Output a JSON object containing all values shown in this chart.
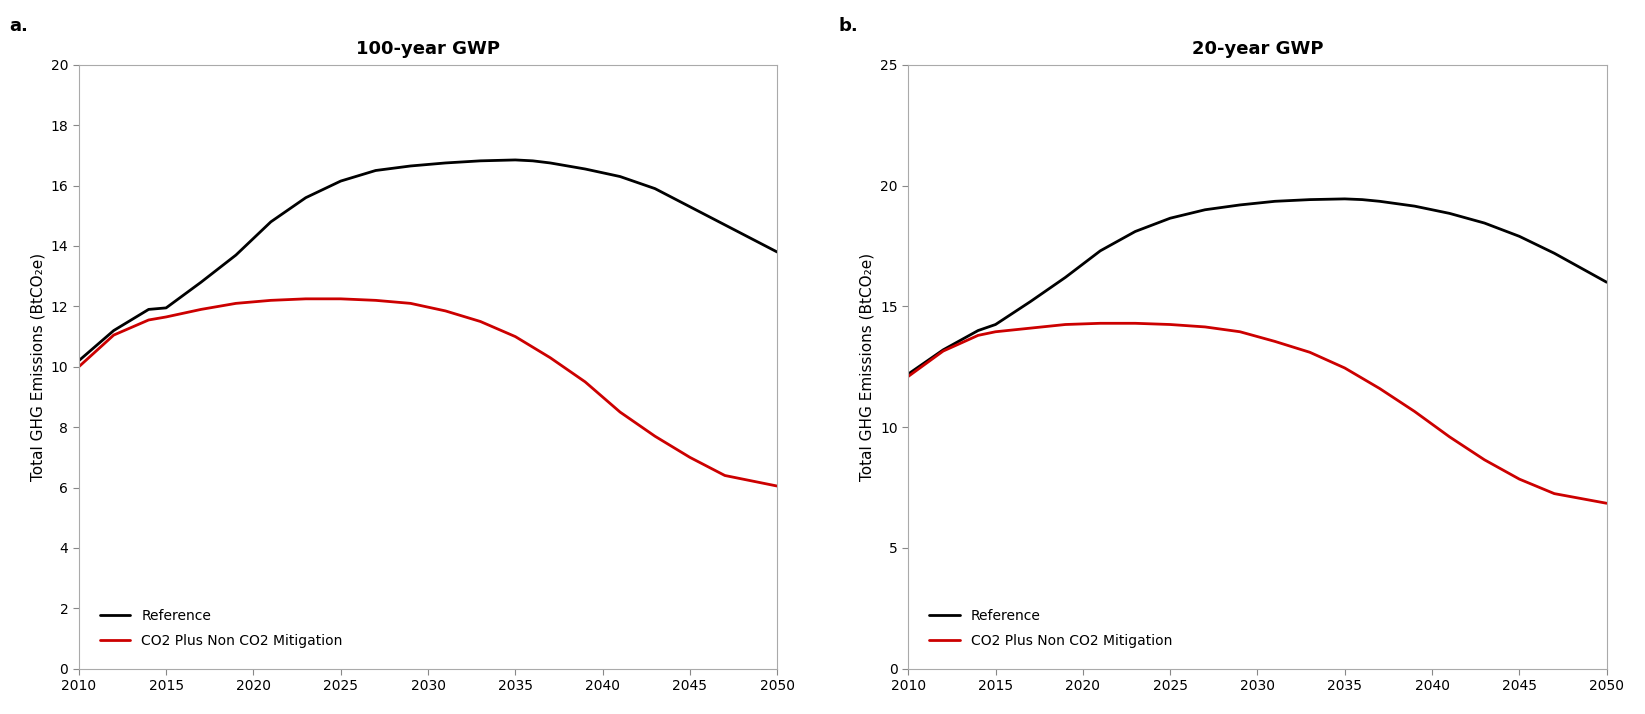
{
  "panel_a": {
    "title": "100-year GWP",
    "label": "a.",
    "ylabel": "Total GHG Emissions (BtCO₂e)",
    "ylim": [
      0,
      20
    ],
    "yticks": [
      0,
      2,
      4,
      6,
      8,
      10,
      12,
      14,
      16,
      18,
      20
    ],
    "xlim": [
      2010,
      2050
    ],
    "xticks": [
      2010,
      2015,
      2020,
      2025,
      2030,
      2035,
      2040,
      2045,
      2050
    ],
    "reference_x": [
      2010,
      2012,
      2014,
      2015,
      2017,
      2019,
      2021,
      2023,
      2025,
      2027,
      2029,
      2031,
      2033,
      2035,
      2036,
      2037,
      2039,
      2041,
      2043,
      2045,
      2047,
      2050
    ],
    "reference_y": [
      10.2,
      11.2,
      11.9,
      11.95,
      12.8,
      13.7,
      14.8,
      15.6,
      16.15,
      16.5,
      16.65,
      16.75,
      16.82,
      16.85,
      16.82,
      16.75,
      16.55,
      16.3,
      15.9,
      15.3,
      14.7,
      13.8
    ],
    "mitigation_x": [
      2010,
      2012,
      2014,
      2015,
      2017,
      2019,
      2021,
      2023,
      2025,
      2027,
      2029,
      2031,
      2033,
      2035,
      2037,
      2039,
      2041,
      2043,
      2045,
      2047,
      2050
    ],
    "mitigation_y": [
      10.0,
      11.05,
      11.55,
      11.65,
      11.9,
      12.1,
      12.2,
      12.25,
      12.25,
      12.2,
      12.1,
      11.85,
      11.5,
      11.0,
      10.3,
      9.5,
      8.5,
      7.7,
      7.0,
      6.4,
      6.05
    ],
    "legend_reference": "Reference",
    "legend_mitigation": "CO2 Plus Non CO2 Mitigation"
  },
  "panel_b": {
    "title": "20-year GWP",
    "label": "b.",
    "ylabel": "Total GHG Emissions (BtCO₂e)",
    "ylim": [
      0,
      25
    ],
    "yticks": [
      0,
      5,
      10,
      15,
      20,
      25
    ],
    "xlim": [
      2010,
      2050
    ],
    "xticks": [
      2010,
      2015,
      2020,
      2025,
      2030,
      2035,
      2040,
      2045,
      2050
    ],
    "reference_x": [
      2010,
      2012,
      2014,
      2015,
      2017,
      2019,
      2021,
      2023,
      2025,
      2027,
      2029,
      2031,
      2033,
      2035,
      2036,
      2037,
      2039,
      2041,
      2043,
      2045,
      2047,
      2050
    ],
    "reference_y": [
      12.2,
      13.2,
      14.0,
      14.25,
      15.2,
      16.2,
      17.3,
      18.1,
      18.65,
      19.0,
      19.2,
      19.35,
      19.42,
      19.45,
      19.42,
      19.35,
      19.15,
      18.85,
      18.45,
      17.9,
      17.2,
      16.0
    ],
    "mitigation_x": [
      2010,
      2012,
      2014,
      2015,
      2017,
      2019,
      2021,
      2023,
      2025,
      2027,
      2029,
      2031,
      2033,
      2035,
      2037,
      2039,
      2041,
      2043,
      2045,
      2047,
      2050
    ],
    "mitigation_y": [
      12.1,
      13.15,
      13.8,
      13.95,
      14.1,
      14.25,
      14.3,
      14.3,
      14.25,
      14.15,
      13.95,
      13.55,
      13.1,
      12.45,
      11.6,
      10.65,
      9.6,
      8.65,
      7.85,
      7.25,
      6.85
    ],
    "legend_reference": "Reference",
    "legend_mitigation": "CO2 Plus Non CO2 Mitigation"
  },
  "line_color_reference": "#000000",
  "line_color_mitigation": "#cc0000",
  "line_width": 2.0,
  "fig_facecolor": "#ffffff",
  "axes_facecolor": "#ffffff"
}
